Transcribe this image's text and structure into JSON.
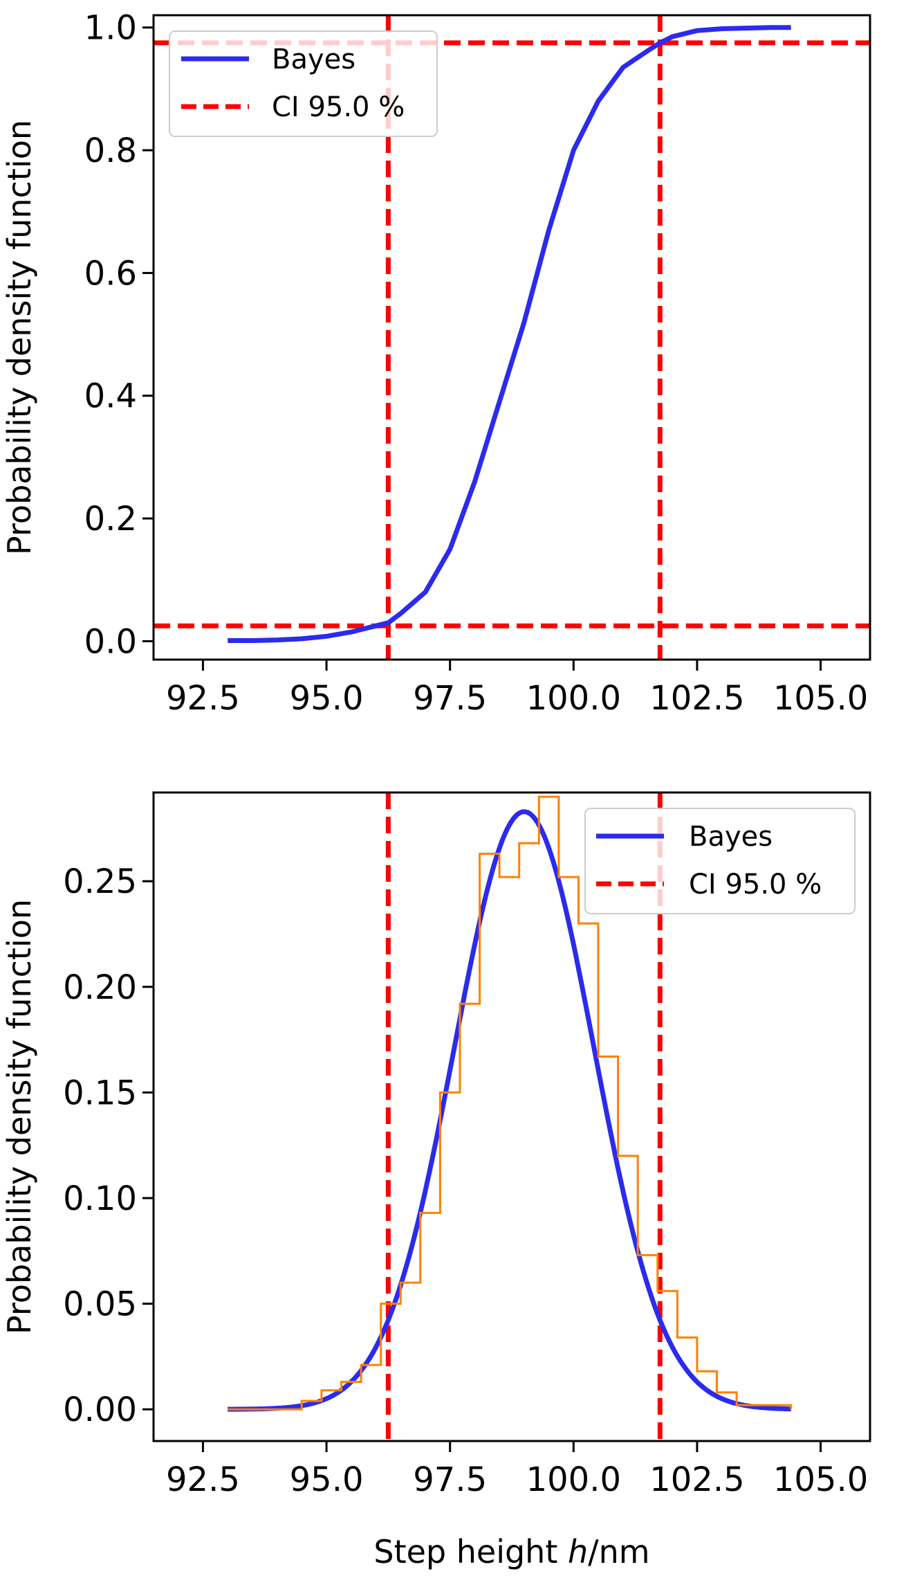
{
  "colors": {
    "bayes": "#2b2bee",
    "ci": "#ff0000",
    "histogram": "#ff8000",
    "axis": "#000000",
    "legend_border": "#cccccc"
  },
  "chart_data": [
    {
      "id": "cdf",
      "type": "line",
      "title": "",
      "xlabel": "",
      "ylabel": "Probability density function",
      "xlim": [
        91.5,
        106.0
      ],
      "ylim": [
        -0.03,
        1.02
      ],
      "xticks": [
        92.5,
        95.0,
        97.5,
        100.0,
        102.5,
        105.0
      ],
      "xtick_labels": [
        "92.5",
        "95.0",
        "97.5",
        "100.0",
        "102.5",
        "105.0"
      ],
      "yticks": [
        0.0,
        0.2,
        0.4,
        0.6,
        0.8,
        1.0
      ],
      "ytick_labels": [
        "0.0",
        "0.2",
        "0.4",
        "0.6",
        "0.8",
        "1.0"
      ],
      "grid": false,
      "legend_position": "top-left",
      "legend": [
        {
          "label": "Bayes",
          "style": "solid",
          "color": "#2b2bee"
        },
        {
          "label": "CI 95.0 %",
          "style": "dashed",
          "color": "#ff0000"
        }
      ],
      "series": [
        {
          "name": "Bayes",
          "x": [
            93.0,
            93.5,
            94.0,
            94.5,
            95.0,
            95.5,
            96.0,
            96.25,
            96.5,
            97.0,
            97.5,
            98.0,
            98.5,
            99.0,
            99.5,
            100.0,
            100.5,
            101.0,
            101.5,
            101.75,
            102.0,
            102.5,
            103.0,
            103.5,
            104.0,
            104.4
          ],
          "y": [
            0.001,
            0.001,
            0.002,
            0.004,
            0.008,
            0.015,
            0.025,
            0.03,
            0.045,
            0.08,
            0.15,
            0.26,
            0.39,
            0.52,
            0.67,
            0.8,
            0.88,
            0.935,
            0.962,
            0.975,
            0.985,
            0.995,
            0.998,
            0.999,
            1.0,
            1.0
          ]
        }
      ],
      "ci_vertical": [
        96.25,
        101.75
      ],
      "ci_horizontal": [
        0.025,
        0.975
      ]
    },
    {
      "id": "pdf",
      "type": "line",
      "title": "",
      "xlabel": "Step height ",
      "xlabel_italic": "h",
      "xlabel_unit": "/nm",
      "ylabel": "Probability density function",
      "xlim": [
        91.5,
        106.0
      ],
      "ylim": [
        -0.015,
        0.292
      ],
      "xticks": [
        92.5,
        95.0,
        97.5,
        100.0,
        102.5,
        105.0
      ],
      "xtick_labels": [
        "92.5",
        "95.0",
        "97.5",
        "100.0",
        "102.5",
        "105.0"
      ],
      "yticks": [
        0.0,
        0.05,
        0.1,
        0.15,
        0.2,
        0.25
      ],
      "ytick_labels": [
        "0.00",
        "0.05",
        "0.10",
        "0.15",
        "0.20",
        "0.25"
      ],
      "grid": false,
      "legend_position": "top-right",
      "legend": [
        {
          "label": "Bayes",
          "style": "solid",
          "color": "#2b2bee"
        },
        {
          "label": "CI 95.0 %",
          "style": "dashed",
          "color": "#ff0000"
        }
      ],
      "series": [
        {
          "name": "Bayes",
          "mean": 99.0,
          "sigma": 1.41,
          "x_range": [
            93.0,
            104.4
          ]
        }
      ],
      "histogram": {
        "bin_edges": [
          93.0,
          94.5,
          94.9,
          95.3,
          95.7,
          96.1,
          96.5,
          96.9,
          97.3,
          97.7,
          98.1,
          98.5,
          98.9,
          99.3,
          99.7,
          100.1,
          100.5,
          100.9,
          101.3,
          101.7,
          102.1,
          102.5,
          102.9,
          103.3,
          104.4
        ],
        "heights": [
          0.0,
          0.004,
          0.009,
          0.013,
          0.021,
          0.05,
          0.06,
          0.093,
          0.15,
          0.192,
          0.263,
          0.252,
          0.268,
          0.29,
          0.252,
          0.23,
          0.167,
          0.12,
          0.073,
          0.056,
          0.034,
          0.018,
          0.008,
          0.002
        ]
      },
      "ci_vertical": [
        96.25,
        101.75
      ]
    }
  ]
}
